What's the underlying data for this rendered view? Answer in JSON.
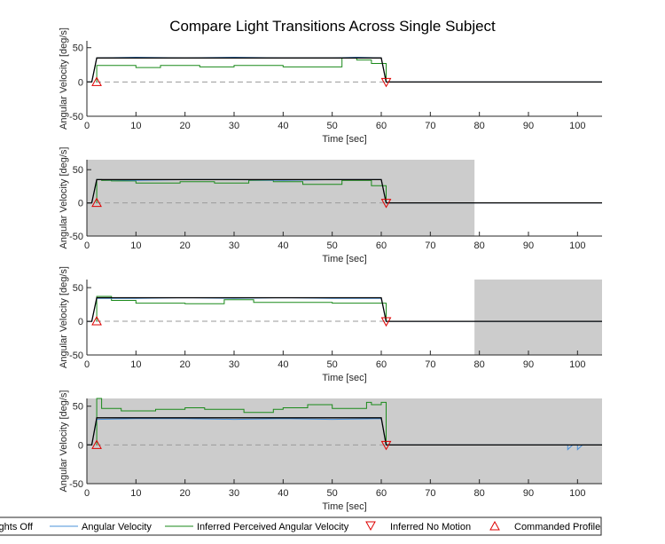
{
  "figure": {
    "title": "Compare Light Transitions Across Single Subject"
  },
  "legend": {
    "entries": [
      {
        "label": "Lights Off",
        "kind": "patch",
        "color": "#cccccc"
      },
      {
        "label": "Angular Velocity",
        "kind": "line",
        "color": "#4a90d9"
      },
      {
        "label": "Inferred Perceived Angular Velocity",
        "kind": "line",
        "color": "#1a8a1a"
      },
      {
        "label": "Inferred No Motion",
        "kind": "marker-down",
        "color": "#dd0000"
      },
      {
        "label": "Commanded Profile",
        "kind": "marker-up",
        "color": "#dd0000"
      }
    ]
  },
  "colors": {
    "commanded": "#000000",
    "measured": "#4a90d9",
    "perceived": "#1a8a1a",
    "marker": "#dd0000",
    "lights_off": "#cccccc",
    "zero_line": "#999999"
  },
  "chart_data": [
    {
      "type": "line",
      "xlabel": "Time [sec]",
      "ylabel": "Angular Velocity [deg/s]",
      "xlim": [
        0,
        105
      ],
      "ylim": [
        -50,
        60
      ],
      "xticks": [
        0,
        10,
        20,
        30,
        40,
        50,
        60,
        70,
        80,
        90,
        100
      ],
      "yticks": [
        -50,
        0,
        50
      ],
      "lights_off": [],
      "series": [
        {
          "name": "Commanded Profile",
          "x": [
            0,
            1,
            2,
            60,
            61,
            105
          ],
          "y": [
            0,
            0,
            35,
            35,
            0,
            0
          ]
        },
        {
          "name": "Angular Velocity",
          "x": [
            0,
            1,
            2,
            10,
            20,
            30,
            40,
            50,
            55,
            60,
            61,
            105
          ],
          "y": [
            0,
            0,
            35,
            36,
            35,
            36,
            35,
            35,
            36,
            35,
            0,
            0
          ]
        },
        {
          "name": "Inferred Perceived Angular Velocity",
          "x": [
            2,
            2,
            10,
            10,
            15,
            15,
            23,
            23,
            30,
            30,
            40,
            40,
            52,
            52,
            55,
            55,
            58,
            58,
            61,
            61
          ],
          "y": [
            0,
            24,
            24,
            21,
            21,
            24,
            24,
            22,
            22,
            24,
            24,
            22,
            22,
            35,
            35,
            32,
            32,
            27,
            27,
            0
          ]
        }
      ],
      "markers": [
        {
          "name": "Commanded Profile",
          "x": 2,
          "y": 0
        },
        {
          "name": "Inferred No Motion",
          "x": 61,
          "y": 0
        }
      ]
    },
    {
      "type": "line",
      "xlabel": "Time [sec]",
      "ylabel": "Angular Velocity [deg/s]",
      "xlim": [
        0,
        105
      ],
      "ylim": [
        -50,
        65
      ],
      "xticks": [
        0,
        10,
        20,
        30,
        40,
        50,
        60,
        70,
        80,
        90,
        100
      ],
      "yticks": [
        -50,
        0,
        50
      ],
      "lights_off": [
        [
          0,
          79
        ]
      ],
      "series": [
        {
          "name": "Commanded Profile",
          "x": [
            0,
            1,
            2,
            60,
            61,
            105
          ],
          "y": [
            0,
            0,
            35,
            35,
            0,
            0
          ]
        },
        {
          "name": "Angular Velocity",
          "x": [
            0,
            1,
            2,
            10,
            20,
            30,
            40,
            50,
            60,
            61,
            105
          ],
          "y": [
            0,
            0,
            35,
            34,
            35,
            35,
            34,
            35,
            35,
            0,
            0
          ]
        },
        {
          "name": "Inferred Perceived Angular Velocity",
          "x": [
            2,
            2,
            3,
            3,
            5,
            5,
            10,
            10,
            19,
            19,
            26,
            26,
            33,
            33,
            38,
            38,
            44,
            44,
            52,
            52,
            58,
            58,
            61,
            61
          ],
          "y": [
            0,
            35,
            35,
            34,
            34,
            33,
            33,
            30,
            30,
            32,
            32,
            30,
            30,
            34,
            34,
            32,
            32,
            28,
            28,
            34,
            34,
            26,
            26,
            0
          ]
        }
      ],
      "markers": [
        {
          "name": "Commanded Profile",
          "x": 2,
          "y": 0
        },
        {
          "name": "Inferred No Motion",
          "x": 61,
          "y": 0
        }
      ]
    },
    {
      "type": "line",
      "xlabel": "Time [sec]",
      "ylabel": "Angular Velocity [deg/s]",
      "xlim": [
        0,
        105
      ],
      "ylim": [
        -50,
        62
      ],
      "xticks": [
        0,
        10,
        20,
        30,
        40,
        50,
        60,
        70,
        80,
        90,
        100
      ],
      "yticks": [
        -50,
        0,
        50
      ],
      "lights_off": [
        [
          79,
          105
        ]
      ],
      "series": [
        {
          "name": "Commanded Profile",
          "x": [
            0,
            1,
            2,
            60,
            61,
            105
          ],
          "y": [
            0,
            0,
            35,
            35,
            0,
            0
          ]
        },
        {
          "name": "Angular Velocity",
          "x": [
            0,
            1,
            2,
            10,
            20,
            30,
            40,
            50,
            60,
            61,
            105
          ],
          "y": [
            0,
            0,
            34,
            34,
            35,
            34,
            35,
            34,
            34,
            0,
            0
          ]
        },
        {
          "name": "Inferred Perceived Angular Velocity",
          "x": [
            2,
            2,
            5,
            5,
            10,
            10,
            20,
            20,
            28,
            28,
            34,
            34,
            50,
            50,
            61,
            61
          ],
          "y": [
            0,
            37,
            37,
            31,
            31,
            27,
            27,
            26,
            26,
            32,
            32,
            28,
            28,
            27,
            27,
            0
          ]
        }
      ],
      "markers": [
        {
          "name": "Commanded Profile",
          "x": 2,
          "y": 0
        },
        {
          "name": "Inferred No Motion",
          "x": 61,
          "y": 0
        }
      ]
    },
    {
      "type": "line",
      "xlabel": "Time [sec]",
      "ylabel": "Angular Velocity [deg/s]",
      "xlim": [
        0,
        105
      ],
      "ylim": [
        -50,
        60
      ],
      "xticks": [
        0,
        10,
        20,
        30,
        40,
        50,
        60,
        70,
        80,
        90,
        100
      ],
      "yticks": [
        -50,
        0,
        50
      ],
      "lights_off": [
        [
          0,
          105
        ]
      ],
      "series": [
        {
          "name": "Commanded Profile",
          "x": [
            0,
            1,
            2,
            60,
            61,
            105
          ],
          "y": [
            0,
            0,
            35,
            35,
            0,
            0
          ]
        },
        {
          "name": "Angular Velocity",
          "x": [
            0,
            1,
            2,
            10,
            20,
            30,
            40,
            50,
            60,
            61,
            98,
            98,
            99,
            100,
            100,
            101,
            105
          ],
          "y": [
            0,
            0,
            33,
            34,
            34,
            33,
            34,
            33,
            34,
            0,
            0,
            -6,
            0,
            0,
            -6,
            0,
            0
          ]
        },
        {
          "name": "Inferred Perceived Angular Velocity",
          "x": [
            2,
            2,
            3,
            3,
            7,
            7,
            14,
            14,
            20,
            20,
            24,
            24,
            32,
            32,
            38,
            38,
            40,
            40,
            45,
            45,
            50,
            50,
            57,
            57,
            58,
            58,
            60,
            60,
            61,
            61
          ],
          "y": [
            0,
            60,
            60,
            47,
            47,
            44,
            44,
            46,
            46,
            48,
            48,
            46,
            46,
            42,
            42,
            46,
            46,
            48,
            48,
            52,
            52,
            47,
            47,
            55,
            55,
            52,
            52,
            55,
            55,
            0
          ]
        }
      ],
      "markers": [
        {
          "name": "Commanded Profile",
          "x": 2,
          "y": 0
        },
        {
          "name": "Inferred No Motion",
          "x": 61,
          "y": 0
        }
      ]
    }
  ]
}
